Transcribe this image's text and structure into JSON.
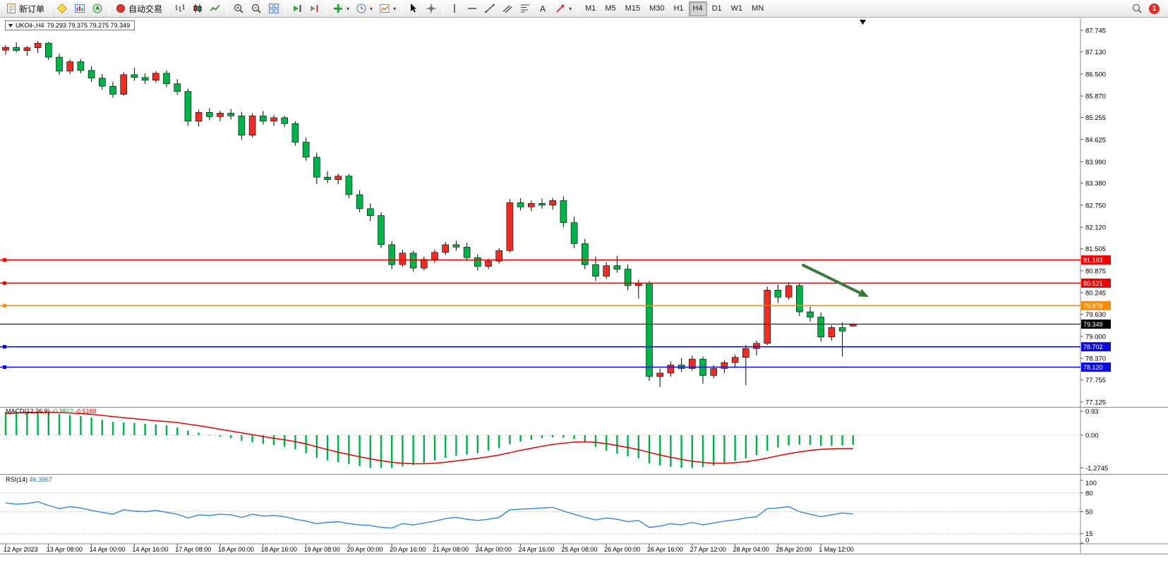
{
  "toolbar": {
    "new_order_label": "新订单",
    "autotrading_label": "自动交易",
    "text_tool_glyph": "A",
    "timeframes": [
      "M1",
      "M5",
      "M15",
      "M30",
      "H1",
      "H4",
      "D1",
      "W1",
      "MN"
    ],
    "active_timeframe": "H4",
    "notification_count": "1",
    "items": [
      {
        "type": "button",
        "name": "new-order",
        "icon": "new-order",
        "label_key": "new_order_label"
      },
      {
        "type": "sep"
      },
      {
        "type": "icon",
        "name": "metaeditor",
        "icon": "metaeditor"
      },
      {
        "type": "icon",
        "name": "market-watch",
        "icon": "market-watch"
      },
      {
        "type": "icon",
        "name": "navigator",
        "icon": "navigator"
      },
      {
        "type": "sep"
      },
      {
        "type": "button",
        "name": "autotrading",
        "icon": "autotrading",
        "label_key": "autotrading_label"
      },
      {
        "type": "sep"
      },
      {
        "type": "icon",
        "name": "bar-chart",
        "icon": "bar-chart"
      },
      {
        "type": "icon",
        "name": "candlestick-chart",
        "icon": "candle-chart"
      },
      {
        "type": "icon",
        "name": "line-chart",
        "icon": "line-chart"
      },
      {
        "type": "sep"
      },
      {
        "type": "icon",
        "name": "zoom-in",
        "icon": "zoom-in"
      },
      {
        "type": "icon",
        "name": "zoom-out",
        "icon": "zoom-out"
      },
      {
        "type": "icon",
        "name": "tile-windows",
        "icon": "tile-windows"
      },
      {
        "type": "sep"
      },
      {
        "type": "icon",
        "name": "auto-scroll",
        "icon": "auto-scroll"
      },
      {
        "type": "icon",
        "name": "chart-shift",
        "icon": "chart-shift"
      },
      {
        "type": "sep"
      },
      {
        "type": "dropdown",
        "name": "indicators",
        "icon": "indicators"
      },
      {
        "type": "dropdown",
        "name": "periods",
        "icon": "periods"
      },
      {
        "type": "dropdown",
        "name": "templates",
        "icon": "templates"
      },
      {
        "type": "sep"
      },
      {
        "type": "icon",
        "name": "cursor",
        "icon": "cursor"
      },
      {
        "type": "icon",
        "name": "crosshair",
        "icon": "crosshair"
      },
      {
        "type": "sep"
      },
      {
        "type": "icon",
        "name": "vertical-line",
        "icon": "vline"
      },
      {
        "type": "icon",
        "name": "horizontal-line",
        "icon": "hline"
      },
      {
        "type": "icon",
        "name": "trendline",
        "icon": "trendline"
      },
      {
        "type": "icon",
        "name": "equidistant-channel",
        "icon": "channel"
      },
      {
        "type": "icon",
        "name": "fibonacci",
        "icon": "fibonacci"
      },
      {
        "type": "icon",
        "name": "text-label",
        "icon": "text"
      },
      {
        "type": "dropdown",
        "name": "arrows",
        "icon": "arrows"
      },
      {
        "type": "sep"
      },
      {
        "type": "timeframes"
      },
      {
        "type": "spacer"
      },
      {
        "type": "icon",
        "name": "search",
        "icon": "search"
      },
      {
        "type": "badge"
      }
    ]
  },
  "chart": {
    "symbol": "UKOil-,H4",
    "quote": "79.293 79.375 79.275 79.349",
    "price_axis": [
      "87.745",
      "87.130",
      "86.500",
      "85.870",
      "85.255",
      "84.625",
      "83.990",
      "83.380",
      "82.750",
      "82.120",
      "81.505",
      "80.875",
      "80.245",
      "79.630",
      "79.000",
      "78.370",
      "77.755",
      "77.125"
    ],
    "hlines": [
      {
        "price": 81.183,
        "label": "81.183",
        "color": "#f20000"
      },
      {
        "price": 80.521,
        "label": "80.521",
        "color": "#f20000"
      },
      {
        "price": 79.878,
        "label": "79.878",
        "color": "#ff8c00"
      },
      {
        "price": 78.702,
        "label": "78.702",
        "color": "#0a0adf"
      },
      {
        "price": 78.12,
        "label": "78.120",
        "color": "#0a0adf"
      }
    ],
    "current_price": {
      "value": 79.349,
      "label": "79.349",
      "color": "#000000"
    },
    "time_axis": [
      {
        "bar": 0,
        "label": "12 Apr 2023"
      },
      {
        "bar": 4,
        "label": "13 Apr 08:00"
      },
      {
        "bar": 8,
        "label": "14 Apr 00:00"
      },
      {
        "bar": 12,
        "label": "14 Apr 16:00"
      },
      {
        "bar": 16,
        "label": "17 Apr 08:00"
      },
      {
        "bar": 20,
        "label": "18 Apr 00:00"
      },
      {
        "bar": 24,
        "label": "18 Apr 16:00"
      },
      {
        "bar": 28,
        "label": "19 Apr 08:00"
      },
      {
        "bar": 32,
        "label": "20 Apr 00:00"
      },
      {
        "bar": 36,
        "label": "20 Apr 16:00"
      },
      {
        "bar": 40,
        "label": "21 Apr 08:00"
      },
      {
        "bar": 44,
        "label": "24 Apr 00:00"
      },
      {
        "bar": 48,
        "label": "24 Apr 16:00"
      },
      {
        "bar": 52,
        "label": "25 Apr 08:00"
      },
      {
        "bar": 56,
        "label": "26 Apr 00:00"
      },
      {
        "bar": 60,
        "label": "26 Apr 16:00"
      },
      {
        "bar": 64,
        "label": "27 Apr 12:00"
      },
      {
        "bar": 68,
        "label": "28 Apr 04:00"
      },
      {
        "bar": 72,
        "label": "28 Apr 20:00"
      },
      {
        "bar": 76,
        "label": "1 May 12:00"
      }
    ]
  },
  "macd": {
    "name": "MACD(12,26,9)",
    "value": "-0.3822",
    "signal": "-0.5168",
    "scale": [
      "0.93",
      "0.00",
      "-1.2745"
    ]
  },
  "rsi": {
    "name": "RSI(14)",
    "value": "46.3967",
    "scale": [
      "100",
      "80",
      "50",
      "15",
      "0"
    ],
    "levels": [
      80,
      50,
      15
    ]
  },
  "chart_data": {
    "type": "candlestick",
    "symbol": "UKOil-",
    "timeframe": "H4",
    "note": "up candles red / down candles green (CN convention)",
    "ohlc": [
      [
        87.18,
        87.33,
        87.05,
        87.26
      ],
      [
        87.26,
        87.4,
        87.12,
        87.17
      ],
      [
        87.17,
        87.3,
        87.02,
        87.25
      ],
      [
        87.25,
        87.44,
        87.1,
        87.38
      ],
      [
        87.38,
        87.42,
        86.9,
        86.98
      ],
      [
        86.98,
        87.08,
        86.48,
        86.58
      ],
      [
        86.58,
        86.92,
        86.5,
        86.85
      ],
      [
        86.85,
        86.93,
        86.52,
        86.6
      ],
      [
        86.6,
        86.72,
        86.28,
        86.38
      ],
      [
        86.38,
        86.5,
        86.05,
        86.15
      ],
      [
        86.15,
        86.28,
        85.82,
        85.92
      ],
      [
        85.92,
        86.55,
        85.88,
        86.48
      ],
      [
        86.48,
        86.68,
        86.3,
        86.4
      ],
      [
        86.4,
        86.52,
        86.22,
        86.32
      ],
      [
        86.32,
        86.58,
        86.25,
        86.52
      ],
      [
        86.52,
        86.6,
        86.12,
        86.22
      ],
      [
        86.22,
        86.35,
        85.9,
        86.0
      ],
      [
        86.0,
        86.08,
        85.02,
        85.15
      ],
      [
        85.15,
        85.48,
        85.0,
        85.4
      ],
      [
        85.4,
        85.52,
        85.18,
        85.28
      ],
      [
        85.28,
        85.45,
        85.15,
        85.38
      ],
      [
        85.38,
        85.5,
        85.2,
        85.3
      ],
      [
        85.3,
        85.42,
        84.62,
        84.75
      ],
      [
        84.75,
        85.38,
        84.68,
        85.3
      ],
      [
        85.3,
        85.44,
        85.05,
        85.15
      ],
      [
        85.15,
        85.32,
        85.02,
        85.25
      ],
      [
        85.25,
        85.3,
        84.98,
        85.08
      ],
      [
        85.08,
        85.15,
        84.45,
        84.55
      ],
      [
        84.55,
        84.68,
        84.02,
        84.12
      ],
      [
        84.12,
        84.25,
        83.35,
        83.55
      ],
      [
        83.55,
        83.72,
        83.38,
        83.48
      ],
      [
        83.48,
        83.65,
        83.35,
        83.58
      ],
      [
        83.58,
        83.64,
        82.95,
        83.05
      ],
      [
        83.05,
        83.18,
        82.55,
        82.65
      ],
      [
        82.65,
        82.8,
        82.3,
        82.45
      ],
      [
        82.45,
        82.55,
        81.52,
        81.62
      ],
      [
        81.62,
        81.72,
        80.92,
        81.05
      ],
      [
        81.05,
        81.48,
        80.98,
        81.38
      ],
      [
        81.38,
        81.45,
        80.85,
        80.95
      ],
      [
        80.95,
        81.28,
        80.88,
        81.2
      ],
      [
        81.2,
        81.48,
        81.1,
        81.4
      ],
      [
        81.4,
        81.7,
        81.32,
        81.62
      ],
      [
        81.62,
        81.74,
        81.45,
        81.55
      ],
      [
        81.55,
        81.68,
        81.15,
        81.25
      ],
      [
        81.25,
        81.35,
        80.88,
        81.0
      ],
      [
        81.0,
        81.22,
        80.92,
        81.15
      ],
      [
        81.15,
        81.52,
        81.08,
        81.45
      ],
      [
        81.45,
        82.92,
        81.4,
        82.82
      ],
      [
        82.82,
        82.95,
        82.6,
        82.7
      ],
      [
        82.7,
        82.88,
        82.58,
        82.8
      ],
      [
        82.8,
        82.94,
        82.65,
        82.75
      ],
      [
        82.75,
        82.96,
        82.62,
        82.88
      ],
      [
        82.88,
        83.0,
        82.12,
        82.25
      ],
      [
        82.25,
        82.42,
        81.52,
        81.65
      ],
      [
        81.65,
        81.78,
        80.92,
        81.05
      ],
      [
        81.05,
        81.28,
        80.58,
        80.72
      ],
      [
        80.72,
        81.12,
        80.65,
        81.02
      ],
      [
        81.02,
        81.3,
        80.82,
        80.92
      ],
      [
        80.92,
        81.05,
        80.32,
        80.45
      ],
      [
        80.45,
        80.62,
        80.08,
        80.52
      ],
      [
        80.52,
        80.58,
        77.72,
        77.85
      ],
      [
        77.85,
        78.08,
        77.55,
        77.95
      ],
      [
        77.95,
        78.28,
        77.85,
        78.18
      ],
      [
        78.18,
        78.38,
        77.98,
        78.08
      ],
      [
        78.08,
        78.45,
        78.02,
        78.35
      ],
      [
        78.35,
        78.42,
        77.65,
        77.88
      ],
      [
        77.88,
        78.18,
        77.8,
        78.08
      ],
      [
        78.08,
        78.32,
        77.95,
        78.25
      ],
      [
        78.25,
        78.48,
        78.1,
        78.4
      ],
      [
        78.4,
        78.75,
        77.6,
        78.65
      ],
      [
        78.65,
        78.88,
        78.45,
        78.8
      ],
      [
        78.8,
        80.42,
        78.75,
        80.32
      ],
      [
        80.32,
        80.48,
        79.95,
        80.12
      ],
      [
        80.12,
        80.55,
        80.05,
        80.45
      ],
      [
        80.45,
        80.52,
        79.58,
        79.7
      ],
      [
        79.7,
        79.85,
        79.42,
        79.55
      ],
      [
        79.55,
        79.68,
        78.85,
        78.98
      ],
      [
        78.98,
        79.32,
        78.88,
        79.25
      ],
      [
        79.25,
        79.4,
        78.42,
        79.15
      ],
      [
        79.293,
        79.375,
        79.275,
        79.349
      ]
    ],
    "indicators": {
      "macd_hist": [
        0.9,
        0.92,
        0.93,
        0.91,
        0.88,
        0.82,
        0.78,
        0.74,
        0.68,
        0.6,
        0.52,
        0.5,
        0.48,
        0.44,
        0.42,
        0.38,
        0.3,
        0.18,
        0.1,
        0.02,
        -0.06,
        -0.12,
        -0.22,
        -0.28,
        -0.34,
        -0.38,
        -0.44,
        -0.55,
        -0.7,
        -0.88,
        -0.98,
        -1.05,
        -1.12,
        -1.2,
        -1.26,
        -1.27,
        -1.26,
        -1.22,
        -1.16,
        -1.08,
        -0.98,
        -0.88,
        -0.8,
        -0.75,
        -0.7,
        -0.6,
        -0.5,
        -0.35,
        -0.25,
        -0.18,
        -0.12,
        -0.08,
        -0.1,
        -0.15,
        -0.28,
        -0.45,
        -0.6,
        -0.72,
        -0.82,
        -0.9,
        -1.1,
        -1.18,
        -1.23,
        -1.26,
        -1.2745,
        -1.24,
        -1.18,
        -1.1,
        -1.0,
        -0.9,
        -0.78,
        -0.6,
        -0.48,
        -0.4,
        -0.37,
        -0.38,
        -0.41,
        -0.42,
        -0.4,
        -0.3822
      ],
      "macd_signal": [
        0.84,
        0.86,
        0.88,
        0.89,
        0.89,
        0.88,
        0.86,
        0.84,
        0.81,
        0.77,
        0.72,
        0.68,
        0.64,
        0.6,
        0.56,
        0.53,
        0.49,
        0.43,
        0.37,
        0.3,
        0.23,
        0.16,
        0.09,
        0.02,
        -0.05,
        -0.12,
        -0.18,
        -0.25,
        -0.34,
        -0.45,
        -0.56,
        -0.66,
        -0.75,
        -0.84,
        -0.92,
        -0.99,
        -1.05,
        -1.09,
        -1.11,
        -1.11,
        -1.09,
        -1.05,
        -1.0,
        -0.95,
        -0.9,
        -0.84,
        -0.77,
        -0.68,
        -0.59,
        -0.51,
        -0.43,
        -0.36,
        -0.31,
        -0.27,
        -0.26,
        -0.28,
        -0.33,
        -0.4,
        -0.48,
        -0.56,
        -0.67,
        -0.77,
        -0.86,
        -0.94,
        -1.01,
        -1.06,
        -1.09,
        -1.09,
        -1.07,
        -1.03,
        -0.97,
        -0.89,
        -0.8,
        -0.72,
        -0.65,
        -0.59,
        -0.55,
        -0.53,
        -0.52,
        -0.5168
      ],
      "rsi": [
        64,
        62,
        63,
        66,
        60,
        55,
        58,
        56,
        52,
        49,
        46,
        53,
        51,
        50,
        52,
        49,
        46,
        40,
        45,
        44,
        46,
        45,
        41,
        46,
        43,
        44,
        42,
        38,
        35,
        31,
        33,
        34,
        31,
        29,
        28,
        25,
        24,
        31,
        29,
        32,
        35,
        39,
        41,
        38,
        36,
        38,
        41,
        53,
        54,
        55,
        56,
        57,
        51,
        46,
        41,
        37,
        40,
        38,
        34,
        36,
        25,
        27,
        31,
        29,
        33,
        29,
        32,
        35,
        37,
        40,
        42,
        55,
        56,
        58,
        50,
        46,
        42,
        45,
        48,
        46.4
      ]
    },
    "colors": {
      "up": "#ee2e24",
      "down": "#00b24a",
      "wick": "#000000",
      "macd_hist": "#00b24a",
      "macd_sign": "#e00000",
      "rsi": "#3187d9",
      "arrow": "#357a38"
    }
  }
}
